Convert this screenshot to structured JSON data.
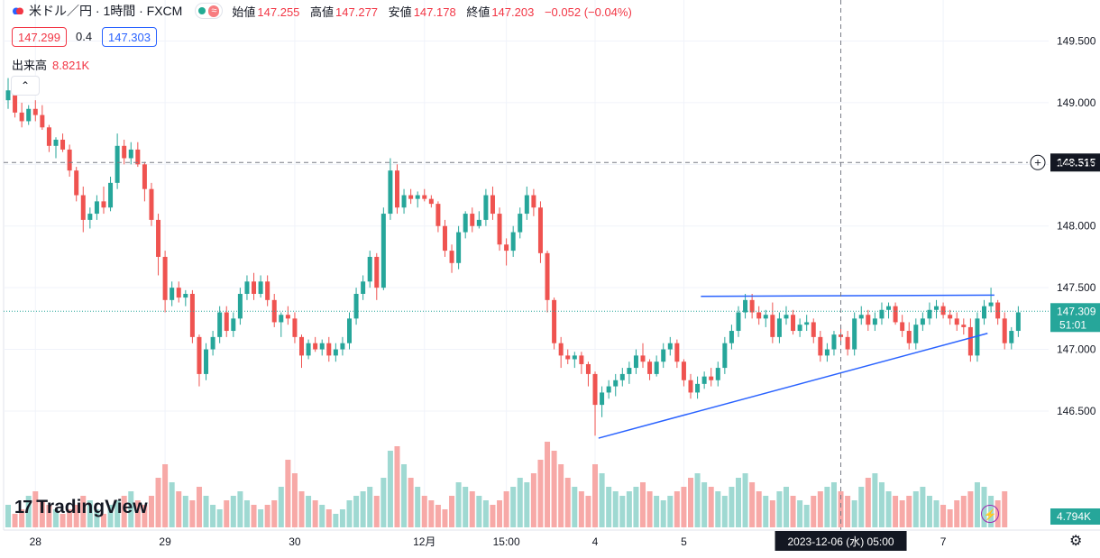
{
  "header": {
    "symbol": "米ドル／円 · 1時間 · FXCM",
    "ohlc": [
      {
        "k": "始値",
        "v": "147.255"
      },
      {
        "k": "高値",
        "v": "147.277"
      },
      {
        "k": "安値",
        "v": "147.178"
      },
      {
        "k": "終値",
        "v": "147.203"
      },
      {
        "k": "",
        "v": "−0.052 (−0.04%)"
      }
    ],
    "bid": "147.299",
    "spread": "0.4",
    "ask": "147.303",
    "volume_label": "出来高",
    "volume_value": "8.821K"
  },
  "logo": "TradingView",
  "colors": {
    "up": "#26a69a",
    "down": "#ef5350",
    "up_vol": "#9fd9d2",
    "down_vol": "#f7a9a7",
    "trend": "#2962ff",
    "accent": "#2962ff"
  },
  "chart_data": {
    "type": "candlestick",
    "title": "米ドル／円 · 1時間 · FXCM",
    "y_ticks": [
      "149.500",
      "149.000",
      "148.500",
      "148.000",
      "147.500",
      "147.000",
      "146.500"
    ],
    "ylim": [
      146.2,
      149.65
    ],
    "x_ticks": [
      {
        "label": "28",
        "i": 4
      },
      {
        "label": "29",
        "i": 23
      },
      {
        "label": "30",
        "i": 42
      },
      {
        "label": "12月",
        "i": 61
      },
      {
        "label": "15:00",
        "i": 73
      },
      {
        "label": "4",
        "i": 86
      },
      {
        "label": "5",
        "i": 99
      },
      {
        "label": "7",
        "i": 137
      }
    ],
    "crosshair": {
      "price_label": "148.515",
      "price": 148.515,
      "time_label": "2023-12-06 (水)  05:00",
      "i": 122
    },
    "last_price": {
      "label": "147.309",
      "countdown": "51:01",
      "price": 147.309
    },
    "volume_label": "4.794K",
    "trend_lines": [
      {
        "x1": 101.5,
        "y1": 147.43,
        "x2": 144.5,
        "y2": 147.44
      },
      {
        "x1": 86.5,
        "y1": 146.28,
        "x2": 143.5,
        "y2": 147.13
      }
    ],
    "candles": [
      [
        149.02,
        149.2,
        148.95,
        149.1
      ],
      [
        149.1,
        149.15,
        148.88,
        148.92
      ],
      [
        148.92,
        149.0,
        148.8,
        148.85
      ],
      [
        148.85,
        148.98,
        148.82,
        148.95
      ],
      [
        148.95,
        149.02,
        148.85,
        148.9
      ],
      [
        148.9,
        148.98,
        148.78,
        148.8
      ],
      [
        148.8,
        148.82,
        148.6,
        148.65
      ],
      [
        148.65,
        148.72,
        148.55,
        148.7
      ],
      [
        148.7,
        148.75,
        148.6,
        148.62
      ],
      [
        148.62,
        148.66,
        148.4,
        148.45
      ],
      [
        148.45,
        148.48,
        148.2,
        148.25
      ],
      [
        148.25,
        148.32,
        147.95,
        148.05
      ],
      [
        148.05,
        148.15,
        147.98,
        148.1
      ],
      [
        148.1,
        148.25,
        148.05,
        148.2
      ],
      [
        148.2,
        148.32,
        148.1,
        148.15
      ],
      [
        148.15,
        148.4,
        148.12,
        148.35
      ],
      [
        148.35,
        148.75,
        148.3,
        148.65
      ],
      [
        148.65,
        148.7,
        148.5,
        148.55
      ],
      [
        148.55,
        148.68,
        148.5,
        148.62
      ],
      [
        148.62,
        148.68,
        148.48,
        148.5
      ],
      [
        148.5,
        148.52,
        148.2,
        148.3
      ],
      [
        148.3,
        148.35,
        148.0,
        148.05
      ],
      [
        148.05,
        148.1,
        147.6,
        147.75
      ],
      [
        147.75,
        147.8,
        147.3,
        147.4
      ],
      [
        147.4,
        147.55,
        147.35,
        147.5
      ],
      [
        147.5,
        147.55,
        147.38,
        147.42
      ],
      [
        147.42,
        147.48,
        147.35,
        147.45
      ],
      [
        147.45,
        147.48,
        147.05,
        147.1
      ],
      [
        147.1,
        147.12,
        146.7,
        146.8
      ],
      [
        146.8,
        147.05,
        146.75,
        147.0
      ],
      [
        147.0,
        147.15,
        146.95,
        147.1
      ],
      [
        147.1,
        147.35,
        147.05,
        147.3
      ],
      [
        147.3,
        147.35,
        147.1,
        147.15
      ],
      [
        147.15,
        147.3,
        147.1,
        147.25
      ],
      [
        147.25,
        147.5,
        147.2,
        147.45
      ],
      [
        147.45,
        147.6,
        147.4,
        147.55
      ],
      [
        147.55,
        147.62,
        147.4,
        147.45
      ],
      [
        147.45,
        147.6,
        147.42,
        147.55
      ],
      [
        147.55,
        147.6,
        147.35,
        147.4
      ],
      [
        147.4,
        147.45,
        147.18,
        147.22
      ],
      [
        147.22,
        147.3,
        147.1,
        147.28
      ],
      [
        147.28,
        147.35,
        147.2,
        147.25
      ],
      [
        147.25,
        147.3,
        147.05,
        147.1
      ],
      [
        147.1,
        147.12,
        146.85,
        146.95
      ],
      [
        146.95,
        147.08,
        146.92,
        147.05
      ],
      [
        147.05,
        147.1,
        146.98,
        147.0
      ],
      [
        147.0,
        147.08,
        146.95,
        147.05
      ],
      [
        147.05,
        147.1,
        146.9,
        146.95
      ],
      [
        146.95,
        147.05,
        146.9,
        147.0
      ],
      [
        147.0,
        147.1,
        146.95,
        147.05
      ],
      [
        147.05,
        147.3,
        147.0,
        147.25
      ],
      [
        147.25,
        147.5,
        147.2,
        147.45
      ],
      [
        147.45,
        147.6,
        147.4,
        147.55
      ],
      [
        147.55,
        147.8,
        147.5,
        147.75
      ],
      [
        147.75,
        147.78,
        147.4,
        147.5
      ],
      [
        147.5,
        148.15,
        147.48,
        148.1
      ],
      [
        148.1,
        148.55,
        148.05,
        148.45
      ],
      [
        148.45,
        148.5,
        148.1,
        148.15
      ],
      [
        148.15,
        148.3,
        148.1,
        148.25
      ],
      [
        148.25,
        148.3,
        148.18,
        148.22
      ],
      [
        148.22,
        148.28,
        148.15,
        148.25
      ],
      [
        148.25,
        148.3,
        148.2,
        148.22
      ],
      [
        148.22,
        148.25,
        148.15,
        148.18
      ],
      [
        148.18,
        148.2,
        147.95,
        148.0
      ],
      [
        148.0,
        148.05,
        147.75,
        147.8
      ],
      [
        147.8,
        147.85,
        147.62,
        147.7
      ],
      [
        147.7,
        148.0,
        147.65,
        147.95
      ],
      [
        147.95,
        148.12,
        147.9,
        148.1
      ],
      [
        148.1,
        148.15,
        147.95,
        148.0
      ],
      [
        148.0,
        148.12,
        147.98,
        148.05
      ],
      [
        148.05,
        148.3,
        148.0,
        148.25
      ],
      [
        148.25,
        148.32,
        148.05,
        148.1
      ],
      [
        148.1,
        148.15,
        147.8,
        147.85
      ],
      [
        147.85,
        147.9,
        147.68,
        147.8
      ],
      [
        147.8,
        148.0,
        147.75,
        147.95
      ],
      [
        147.95,
        148.15,
        147.9,
        148.1
      ],
      [
        148.1,
        148.32,
        148.05,
        148.25
      ],
      [
        148.25,
        148.3,
        148.08,
        148.15
      ],
      [
        148.15,
        148.2,
        147.7,
        147.78
      ],
      [
        147.78,
        147.8,
        147.3,
        147.4
      ],
      [
        147.4,
        147.42,
        147.0,
        147.05
      ],
      [
        147.05,
        147.1,
        146.85,
        146.95
      ],
      [
        146.95,
        147.0,
        146.88,
        146.92
      ],
      [
        146.92,
        146.98,
        146.85,
        146.95
      ],
      [
        146.95,
        146.98,
        146.8,
        146.88
      ],
      [
        146.88,
        146.9,
        146.7,
        146.8
      ],
      [
        146.8,
        146.82,
        146.3,
        146.55
      ],
      [
        146.55,
        146.7,
        146.45,
        146.65
      ],
      [
        146.65,
        146.75,
        146.6,
        146.7
      ],
      [
        146.7,
        146.8,
        146.62,
        146.75
      ],
      [
        146.75,
        146.85,
        146.7,
        146.8
      ],
      [
        146.8,
        146.9,
        146.72,
        146.85
      ],
      [
        146.85,
        147.0,
        146.8,
        146.95
      ],
      [
        146.95,
        147.05,
        146.85,
        146.9
      ],
      [
        146.9,
        146.92,
        146.75,
        146.8
      ],
      [
        146.8,
        146.95,
        146.78,
        146.9
      ],
      [
        146.9,
        147.05,
        146.85,
        147.0
      ],
      [
        147.0,
        147.1,
        146.95,
        147.05
      ],
      [
        147.05,
        147.08,
        146.85,
        146.9
      ],
      [
        146.9,
        146.92,
        146.7,
        146.75
      ],
      [
        146.75,
        146.8,
        146.6,
        146.65
      ],
      [
        146.65,
        146.78,
        146.6,
        146.72
      ],
      [
        146.72,
        146.82,
        146.68,
        146.78
      ],
      [
        146.78,
        146.85,
        146.7,
        146.75
      ],
      [
        146.75,
        146.9,
        146.7,
        146.85
      ],
      [
        146.85,
        147.1,
        146.8,
        147.05
      ],
      [
        147.05,
        147.2,
        147.0,
        147.15
      ],
      [
        147.15,
        147.35,
        147.1,
        147.3
      ],
      [
        147.3,
        147.45,
        147.25,
        147.4
      ],
      [
        147.4,
        147.45,
        147.25,
        147.3
      ],
      [
        147.3,
        147.35,
        147.2,
        147.25
      ],
      [
        147.25,
        147.32,
        147.18,
        147.28
      ],
      [
        147.28,
        147.38,
        147.05,
        147.1
      ],
      [
        147.1,
        147.3,
        147.05,
        147.25
      ],
      [
        147.25,
        147.35,
        147.2,
        147.28
      ],
      [
        147.28,
        147.32,
        147.12,
        147.15
      ],
      [
        147.15,
        147.25,
        147.1,
        147.2
      ],
      [
        147.2,
        147.28,
        147.15,
        147.22
      ],
      [
        147.22,
        147.25,
        147.05,
        147.1
      ],
      [
        147.1,
        147.15,
        146.9,
        146.95
      ],
      [
        146.95,
        147.05,
        146.9,
        147.0
      ],
      [
        147.0,
        147.15,
        146.95,
        147.12
      ],
      [
        147.12,
        147.2,
        147.05,
        147.1
      ],
      [
        147.1,
        147.15,
        146.95,
        147.0
      ],
      [
        147.0,
        147.3,
        146.95,
        147.25
      ],
      [
        147.25,
        147.35,
        147.2,
        147.28
      ],
      [
        147.28,
        147.32,
        147.15,
        147.2
      ],
      [
        147.2,
        147.3,
        147.15,
        147.25
      ],
      [
        147.25,
        147.38,
        147.2,
        147.32
      ],
      [
        147.32,
        147.38,
        147.25,
        147.35
      ],
      [
        147.35,
        147.38,
        147.2,
        147.22
      ],
      [
        147.22,
        147.28,
        147.1,
        147.15
      ],
      [
        147.15,
        147.22,
        147.0,
        147.05
      ],
      [
        147.05,
        147.25,
        147.0,
        147.2
      ],
      [
        147.2,
        147.3,
        147.15,
        147.25
      ],
      [
        147.25,
        147.38,
        147.2,
        147.32
      ],
      [
        147.32,
        147.4,
        147.25,
        147.35
      ],
      [
        147.35,
        147.38,
        147.25,
        147.28
      ],
      [
        147.28,
        147.32,
        147.2,
        147.25
      ],
      [
        147.25,
        147.3,
        147.15,
        147.2
      ],
      [
        147.2,
        147.25,
        147.12,
        147.18
      ],
      [
        147.18,
        147.25,
        146.9,
        146.95
      ],
      [
        146.95,
        147.3,
        146.9,
        147.25
      ],
      [
        147.25,
        147.4,
        147.2,
        147.35
      ],
      [
        147.35,
        147.5,
        147.3,
        147.38
      ],
      [
        147.38,
        147.4,
        147.2,
        147.25
      ],
      [
        147.25,
        147.3,
        147.0,
        147.05
      ],
      [
        147.05,
        147.18,
        147.0,
        147.15
      ],
      [
        147.15,
        147.35,
        147.1,
        147.3
      ]
    ],
    "volumes": [
      0.25,
      0.15,
      0.2,
      0.35,
      0.4,
      0.3,
      0.25,
      0.2,
      0.15,
      0.2,
      0.25,
      0.35,
      0.3,
      0.2,
      0.15,
      0.25,
      0.3,
      0.35,
      0.4,
      0.3,
      0.25,
      0.35,
      0.55,
      0.7,
      0.5,
      0.4,
      0.35,
      0.3,
      0.45,
      0.35,
      0.25,
      0.2,
      0.3,
      0.35,
      0.4,
      0.3,
      0.25,
      0.2,
      0.25,
      0.3,
      0.45,
      0.75,
      0.6,
      0.4,
      0.35,
      0.3,
      0.25,
      0.2,
      0.15,
      0.2,
      0.3,
      0.35,
      0.4,
      0.45,
      0.35,
      0.55,
      0.85,
      0.9,
      0.7,
      0.55,
      0.45,
      0.35,
      0.3,
      0.25,
      0.2,
      0.35,
      0.5,
      0.45,
      0.4,
      0.35,
      0.3,
      0.25,
      0.3,
      0.4,
      0.45,
      0.55,
      0.5,
      0.6,
      0.75,
      0.95,
      0.85,
      0.7,
      0.55,
      0.45,
      0.4,
      0.35,
      0.7,
      0.6,
      0.45,
      0.4,
      0.35,
      0.4,
      0.45,
      0.5,
      0.4,
      0.35,
      0.3,
      0.35,
      0.4,
      0.45,
      0.55,
      0.6,
      0.5,
      0.45,
      0.4,
      0.35,
      0.45,
      0.55,
      0.6,
      0.5,
      0.4,
      0.35,
      0.3,
      0.4,
      0.45,
      0.35,
      0.3,
      0.25,
      0.35,
      0.4,
      0.45,
      0.5,
      0.4,
      0.35,
      0.3,
      0.45,
      0.55,
      0.6,
      0.5,
      0.4,
      0.35,
      0.3,
      0.35,
      0.4,
      0.45,
      0.35,
      0.3,
      0.25,
      0.2,
      0.3,
      0.35,
      0.4,
      0.5,
      0.45,
      0.35,
      0.3,
      0.4
    ]
  }
}
